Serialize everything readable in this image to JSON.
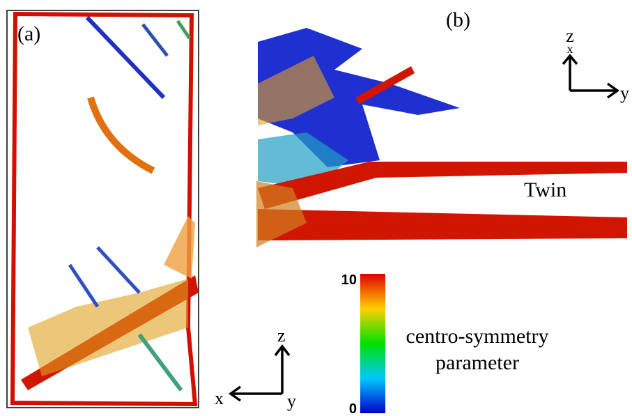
{
  "panel_a": {
    "label": "(a)",
    "axes": {
      "vertical": "z",
      "horizontal": "x",
      "depth": "y"
    }
  },
  "panel_b": {
    "label": "(b)",
    "annotation": "Twin",
    "axes": {
      "vertical": "z",
      "out_of_plane": "x",
      "horizontal": "y"
    }
  },
  "colorbar": {
    "title_lines": [
      "centro-symmetry",
      "parameter"
    ],
    "ticks": [
      0,
      10
    ]
  }
}
